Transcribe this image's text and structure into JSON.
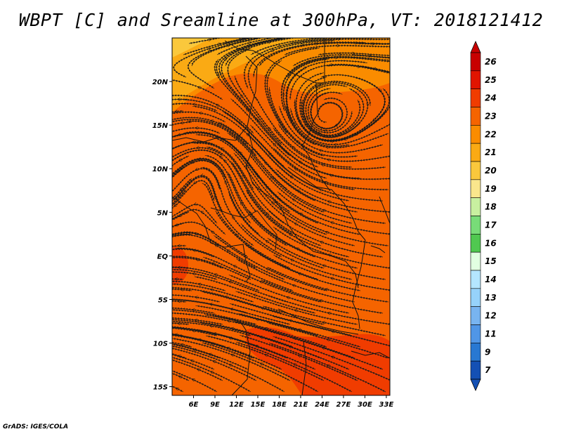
{
  "title": "WBPT [C] and Sreamline at 300hPa, VT: 2018121412",
  "credit": "GrADS: IGES/COLA",
  "map": {
    "lon_range": [
      3,
      33.5
    ],
    "lat_range": [
      -16,
      25
    ],
    "lat_ticks": [
      {
        "value": 20,
        "label": "20N"
      },
      {
        "value": 15,
        "label": "15N"
      },
      {
        "value": 10,
        "label": "10N"
      },
      {
        "value": 5,
        "label": "5N"
      },
      {
        "value": 0,
        "label": "EQ"
      },
      {
        "value": -5,
        "label": "5S"
      },
      {
        "value": -10,
        "label": "10S"
      },
      {
        "value": -15,
        "label": "15S"
      }
    ],
    "lon_ticks": [
      {
        "value": 6,
        "label": "6E"
      },
      {
        "value": 9,
        "label": "9E"
      },
      {
        "value": 12,
        "label": "12E"
      },
      {
        "value": 15,
        "label": "15E"
      },
      {
        "value": 18,
        "label": "18E"
      },
      {
        "value": 21,
        "label": "21E"
      },
      {
        "value": 24,
        "label": "24E"
      },
      {
        "value": 27,
        "label": "27E"
      },
      {
        "value": 30,
        "label": "30E"
      },
      {
        "value": 33,
        "label": "33E"
      }
    ]
  },
  "colorbar": {
    "labels": [
      "26",
      "25",
      "24",
      "23",
      "22",
      "21",
      "20",
      "19",
      "18",
      "17",
      "16",
      "15",
      "14",
      "13",
      "12",
      "11",
      "9",
      "7"
    ],
    "colors": [
      "#c80000",
      "#e11400",
      "#f03c00",
      "#f56400",
      "#fa8c00",
      "#faaa14",
      "#fac83c",
      "#fae68c",
      "#c8f0a0",
      "#78dc78",
      "#50c850",
      "#e1ffe1",
      "#b4e6ff",
      "#96d2fa",
      "#78b4f0",
      "#5096e6",
      "#2878d2",
      "#1450b4"
    ]
  }
}
